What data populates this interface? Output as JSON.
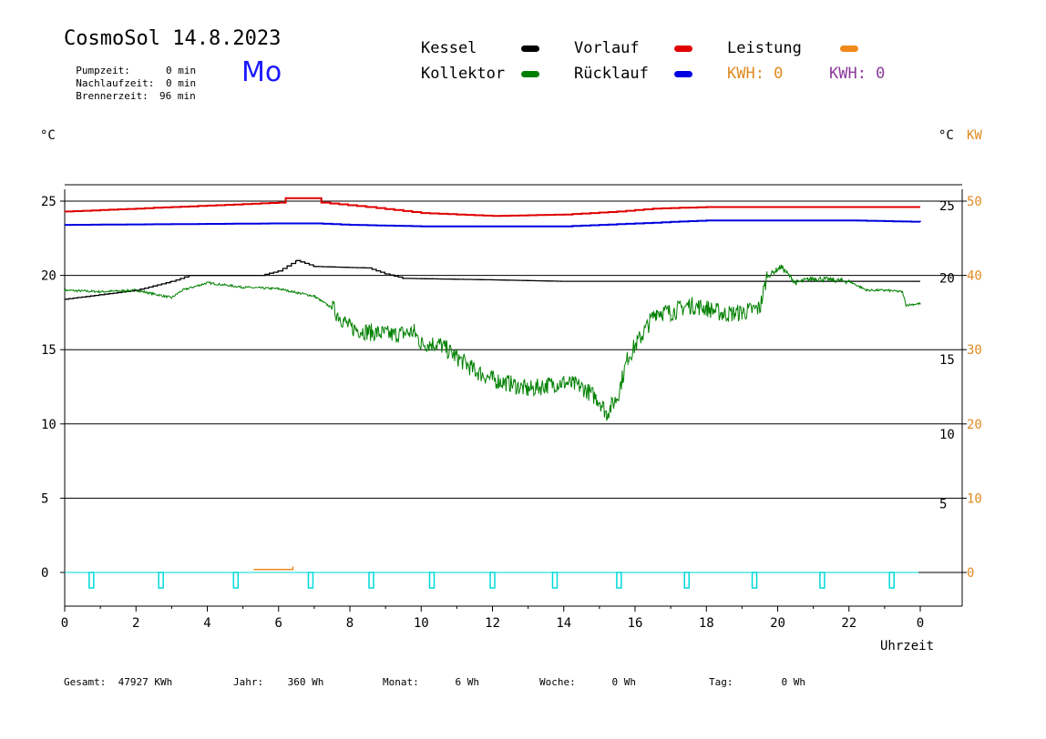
{
  "header": {
    "title": "CosmoSol 14.8.2023",
    "weekday": "Mo",
    "info": [
      {
        "label": "Pumpzeit:",
        "value": "0 min"
      },
      {
        "label": "Nachlaufzeit:",
        "value": "0 min"
      },
      {
        "label": "Brennerzeit:",
        "value": "96 min"
      }
    ]
  },
  "legend": {
    "kessel": {
      "label": "Kessel",
      "color": "#000000"
    },
    "kollektor": {
      "label": "Kollektor",
      "color": "#008000"
    },
    "vorlauf": {
      "label": "Vorlauf",
      "color": "#e00000"
    },
    "ruecklauf": {
      "label": "Rücklauf",
      "color": "#0000e0"
    },
    "leistung": {
      "label": "Leistung",
      "color": "#f08a1a"
    },
    "kwh_orange": "KWH: 0",
    "kwh_purple": "KWH: 0",
    "kwh_orange_color": "#e08a20",
    "kwh_purple_color": "#8b3a9a"
  },
  "units": {
    "left": "°C",
    "right_celsius": "°C",
    "right_kw": "KW"
  },
  "footer": [
    {
      "label": "Gesamt:",
      "value": "47927 KWh"
    },
    {
      "label": "Jahr:",
      "value": "360 Wh"
    },
    {
      "label": "Monat:",
      "value": "6 Wh"
    },
    {
      "label": "Woche:",
      "value": "0 Wh"
    },
    {
      "label": "Tag:",
      "value": "0 Wh"
    }
  ],
  "chart_data": {
    "type": "line",
    "xlabel": "Uhrzeit",
    "x_ticks": [
      "0",
      "2",
      "4",
      "6",
      "8",
      "10",
      "12",
      "14",
      "16",
      "18",
      "20",
      "22",
      "0"
    ],
    "x_range": [
      0,
      24
    ],
    "y_left_ticks": [
      0,
      5,
      10,
      15,
      20,
      25
    ],
    "y_right_inner_ticks": [
      5,
      10,
      15,
      20,
      25
    ],
    "y_right_kw_ticks": [
      0,
      10,
      20,
      30,
      40,
      50
    ],
    "ylim": [
      -2,
      27
    ],
    "grid": "horizontal",
    "series": [
      {
        "name": "Vorlauf",
        "color": "#e00000",
        "points": [
          [
            0,
            24.3
          ],
          [
            2,
            24.5
          ],
          [
            4,
            24.7
          ],
          [
            6,
            24.9
          ],
          [
            6.2,
            25.2
          ],
          [
            7,
            25.2
          ],
          [
            7.2,
            24.9
          ],
          [
            8.5,
            24.6
          ],
          [
            10,
            24.2
          ],
          [
            12,
            24.0
          ],
          [
            14,
            24.1
          ],
          [
            15.5,
            24.3
          ],
          [
            16.5,
            24.5
          ],
          [
            18,
            24.6
          ],
          [
            20,
            24.6
          ],
          [
            22,
            24.6
          ],
          [
            24,
            24.6
          ]
        ]
      },
      {
        "name": "Rücklauf",
        "color": "#0000e0",
        "points": [
          [
            0,
            23.4
          ],
          [
            6,
            23.5
          ],
          [
            7,
            23.5
          ],
          [
            8,
            23.4
          ],
          [
            10,
            23.3
          ],
          [
            12,
            23.3
          ],
          [
            14,
            23.3
          ],
          [
            16,
            23.5
          ],
          [
            18,
            23.7
          ],
          [
            20,
            23.7
          ],
          [
            22,
            23.7
          ],
          [
            24,
            23.6
          ]
        ]
      },
      {
        "name": "Kessel",
        "color": "#000000",
        "points": [
          [
            0,
            18.4
          ],
          [
            1,
            18.7
          ],
          [
            2,
            19.0
          ],
          [
            3,
            19.6
          ],
          [
            3.5,
            20.0
          ],
          [
            5.5,
            20.0
          ],
          [
            6,
            20.3
          ],
          [
            6.5,
            21.0
          ],
          [
            7,
            20.6
          ],
          [
            8.5,
            20.5
          ],
          [
            9,
            20.1
          ],
          [
            9.5,
            19.8
          ],
          [
            12,
            19.7
          ],
          [
            14,
            19.6
          ],
          [
            20,
            19.6
          ],
          [
            24,
            19.6
          ]
        ]
      },
      {
        "name": "Kollektor",
        "color": "#008000",
        "points": [
          [
            0,
            19.0
          ],
          [
            1,
            18.9
          ],
          [
            2,
            19.0
          ],
          [
            3,
            18.5
          ],
          [
            3.3,
            19.0
          ],
          [
            4,
            19.5
          ],
          [
            5,
            19.2
          ],
          [
            6,
            19.1
          ],
          [
            7,
            18.6
          ],
          [
            7.5,
            17.8
          ],
          [
            8,
            16.5
          ],
          [
            8.5,
            16.2
          ],
          [
            9.2,
            16.0
          ],
          [
            9.8,
            16.2
          ],
          [
            10,
            15.4
          ],
          [
            10.5,
            15.4
          ],
          [
            11,
            14.5
          ],
          [
            11.5,
            13.6
          ],
          [
            12,
            13.0
          ],
          [
            12.5,
            12.7
          ],
          [
            13,
            12.3
          ],
          [
            13.5,
            12.6
          ],
          [
            14,
            12.8
          ],
          [
            14.5,
            12.5
          ],
          [
            15,
            11.6
          ],
          [
            15.2,
            10.7
          ],
          [
            15.5,
            11.8
          ],
          [
            15.8,
            14.5
          ],
          [
            16.2,
            16.0
          ],
          [
            16.6,
            17.6
          ],
          [
            17,
            17.5
          ],
          [
            17.5,
            18.0
          ],
          [
            18,
            17.8
          ],
          [
            18.5,
            17.4
          ],
          [
            19,
            17.5
          ],
          [
            19.5,
            17.8
          ],
          [
            19.7,
            19.9
          ],
          [
            20.1,
            20.6
          ],
          [
            20.5,
            19.5
          ],
          [
            21,
            19.8
          ],
          [
            22,
            19.6
          ],
          [
            22.5,
            19.0
          ],
          [
            23,
            19.0
          ],
          [
            23.5,
            18.9
          ],
          [
            23.6,
            18.0
          ],
          [
            24,
            18.1
          ]
        ]
      },
      {
        "name": "Leistung",
        "color": "#f08a1a",
        "points": [
          [
            5.3,
            0.2
          ],
          [
            6.4,
            0.4
          ]
        ]
      },
      {
        "name": "Pumpe",
        "color": "#00dada",
        "pulses": [
          0.75,
          2.7,
          4.8,
          6.9,
          8.6,
          10.3,
          12.0,
          13.75,
          15.55,
          17.45,
          19.35,
          21.25,
          23.2
        ]
      }
    ]
  }
}
